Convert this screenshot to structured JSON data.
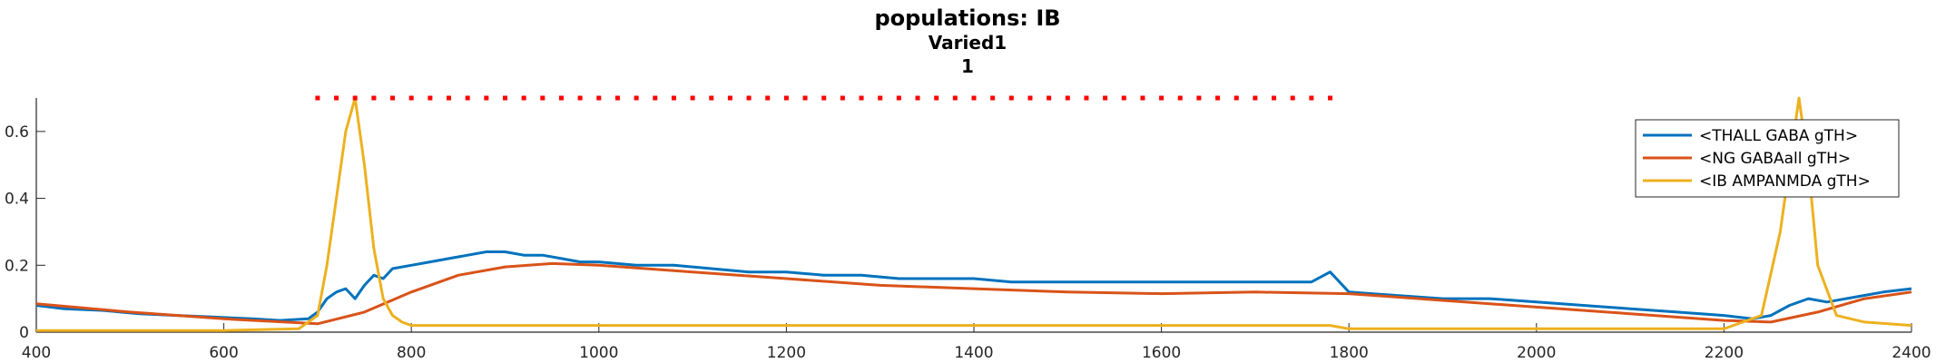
{
  "chart_data": {
    "type": "line",
    "title": "populations: IB",
    "subtitle": "Varied1",
    "panel_label": "1",
    "xlabel": "",
    "ylabel": "",
    "xlim": [
      400,
      2400
    ],
    "ylim": [
      0,
      0.7
    ],
    "x_ticks": [
      400,
      600,
      800,
      1000,
      1200,
      1400,
      1600,
      1800,
      2000,
      2200,
      2400
    ],
    "y_ticks": [
      0,
      0.2,
      0.4,
      0.6
    ],
    "y_tick_labels": [
      "0",
      "0.2",
      "0.4",
      "0.6"
    ],
    "grid": false,
    "legend_position": "top-right",
    "series": [
      {
        "name": "<THALL GABA gTH>",
        "color": "#0072BD",
        "x": [
          400,
          430,
          470,
          510,
          550,
          590,
          630,
          660,
          690,
          700,
          710,
          720,
          730,
          740,
          750,
          760,
          770,
          780,
          800,
          820,
          840,
          860,
          880,
          900,
          920,
          940,
          960,
          980,
          1000,
          1040,
          1080,
          1120,
          1160,
          1200,
          1240,
          1280,
          1320,
          1360,
          1400,
          1440,
          1480,
          1520,
          1560,
          1600,
          1640,
          1680,
          1720,
          1760,
          1780,
          1800,
          1850,
          1900,
          1950,
          2000,
          2050,
          2100,
          2150,
          2200,
          2230,
          2250,
          2270,
          2290,
          2310,
          2330,
          2350,
          2370,
          2400
        ],
        "y": [
          0.08,
          0.07,
          0.065,
          0.055,
          0.05,
          0.045,
          0.04,
          0.035,
          0.04,
          0.06,
          0.1,
          0.12,
          0.13,
          0.1,
          0.14,
          0.17,
          0.16,
          0.19,
          0.2,
          0.21,
          0.22,
          0.23,
          0.24,
          0.24,
          0.23,
          0.23,
          0.22,
          0.21,
          0.21,
          0.2,
          0.2,
          0.19,
          0.18,
          0.18,
          0.17,
          0.17,
          0.16,
          0.16,
          0.16,
          0.15,
          0.15,
          0.15,
          0.15,
          0.15,
          0.15,
          0.15,
          0.15,
          0.15,
          0.18,
          0.12,
          0.11,
          0.1,
          0.1,
          0.09,
          0.08,
          0.07,
          0.06,
          0.05,
          0.04,
          0.05,
          0.08,
          0.1,
          0.09,
          0.1,
          0.11,
          0.12,
          0.13
        ]
      },
      {
        "name": "<NG GABAall gTH>",
        "color": "#D95319",
        "x": [
          400,
          500,
          600,
          700,
          750,
          800,
          850,
          900,
          950,
          1000,
          1050,
          1100,
          1200,
          1300,
          1400,
          1500,
          1600,
          1700,
          1800,
          1900,
          2000,
          2100,
          2200,
          2250,
          2300,
          2350,
          2400
        ],
        "y": [
          0.085,
          0.06,
          0.04,
          0.025,
          0.06,
          0.12,
          0.17,
          0.195,
          0.205,
          0.2,
          0.19,
          0.18,
          0.16,
          0.14,
          0.13,
          0.12,
          0.115,
          0.12,
          0.115,
          0.095,
          0.075,
          0.055,
          0.035,
          0.03,
          0.06,
          0.1,
          0.12
        ]
      },
      {
        "name": "<IB AMPANMDA gTH>",
        "color": "#EDB120",
        "x": [
          400,
          500,
          600,
          680,
          700,
          710,
          720,
          730,
          740,
          750,
          760,
          770,
          780,
          790,
          800,
          810,
          820,
          850,
          900,
          950,
          1000,
          1100,
          1200,
          1300,
          1400,
          1500,
          1600,
          1700,
          1780,
          1800,
          1900,
          2000,
          2100,
          2200,
          2240,
          2260,
          2270,
          2280,
          2290,
          2300,
          2320,
          2350,
          2400
        ],
        "y": [
          0.005,
          0.005,
          0.005,
          0.01,
          0.05,
          0.2,
          0.4,
          0.6,
          0.7,
          0.5,
          0.25,
          0.1,
          0.05,
          0.03,
          0.02,
          0.02,
          0.02,
          0.02,
          0.02,
          0.02,
          0.02,
          0.02,
          0.02,
          0.02,
          0.02,
          0.02,
          0.02,
          0.02,
          0.02,
          0.01,
          0.01,
          0.01,
          0.01,
          0.01,
          0.05,
          0.3,
          0.5,
          0.7,
          0.5,
          0.2,
          0.05,
          0.03,
          0.02
        ]
      }
    ],
    "markers": {
      "name": "",
      "color": "#FF0000",
      "y": 0.7,
      "x": [
        700,
        720,
        740,
        760,
        780,
        800,
        820,
        840,
        860,
        880,
        900,
        920,
        940,
        960,
        980,
        1000,
        1020,
        1040,
        1060,
        1080,
        1100,
        1120,
        1140,
        1160,
        1180,
        1200,
        1220,
        1240,
        1260,
        1280,
        1300,
        1320,
        1340,
        1360,
        1380,
        1400,
        1420,
        1440,
        1460,
        1480,
        1500,
        1520,
        1540,
        1560,
        1580,
        1600,
        1620,
        1640,
        1660,
        1680,
        1700,
        1720,
        1740,
        1760,
        1780
      ]
    }
  }
}
